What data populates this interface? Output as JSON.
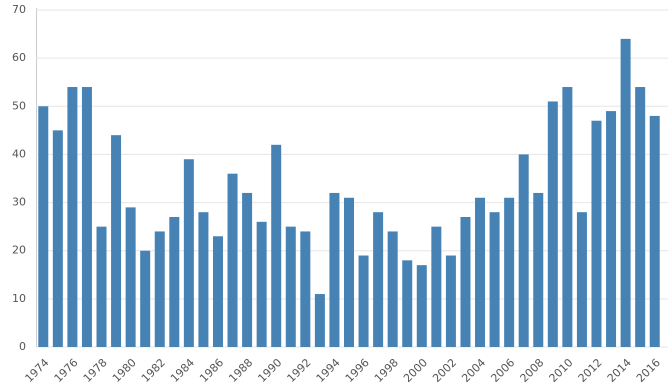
{
  "chart_data": {
    "type": "bar",
    "categories": [
      "1974",
      null,
      "1976",
      null,
      "1978",
      null,
      "1980",
      null,
      "1982",
      null,
      "1984",
      null,
      "1986",
      null,
      "1988",
      null,
      "1990",
      null,
      "1992",
      null,
      "1994",
      null,
      "1996",
      null,
      "1998",
      null,
      "2000",
      null,
      "2002",
      null,
      "2004",
      null,
      "2006",
      null,
      "2008",
      null,
      "2010",
      null,
      "2012",
      null,
      "2014",
      null,
      "2016"
    ],
    "values": [
      50,
      45,
      54,
      54,
      25,
      44,
      29,
      20,
      24,
      27,
      39,
      28,
      23,
      36,
      32,
      26,
      42,
      25,
      24,
      11,
      32,
      31,
      19,
      28,
      24,
      18,
      17,
      25,
      19,
      27,
      31,
      28,
      31,
      40,
      32,
      51,
      54,
      28,
      47,
      49,
      64,
      54,
      48
    ],
    "color": "#4682b4",
    "ylim": [
      0,
      70
    ],
    "yticks": [
      0,
      10,
      20,
      30,
      40,
      50,
      60,
      70
    ],
    "grid": true
  }
}
